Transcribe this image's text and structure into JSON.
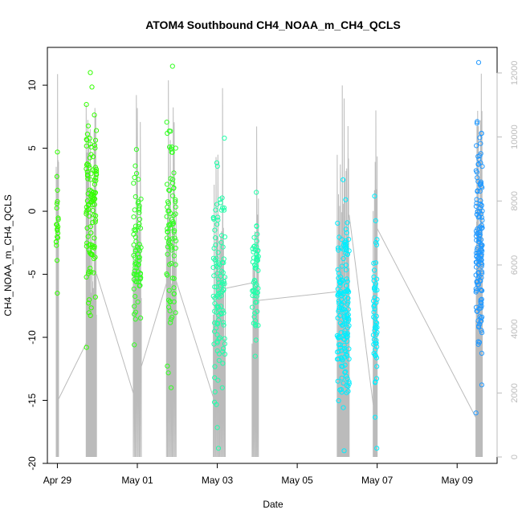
{
  "chart_data": {
    "type": "scatter",
    "title": "ATOM4 Southbound CH4_NOAA_m_CH4_QCLS",
    "xlabel": "Date",
    "ylabel": "CH4_NOAA_m_CH4_QCLS",
    "xlim": [
      -0.25,
      11.0
    ],
    "ylim": [
      -20,
      13
    ],
    "x_ticks": [
      {
        "value": 0,
        "label": "Apr 29"
      },
      {
        "value": 2,
        "label": "May 01"
      },
      {
        "value": 4,
        "label": "May 03"
      },
      {
        "value": 6,
        "label": "May 05"
      },
      {
        "value": 8,
        "label": "May 07"
      },
      {
        "value": 10,
        "label": "May 09"
      }
    ],
    "y_ticks": [
      -20,
      -15,
      -10,
      -5,
      0,
      5,
      10
    ],
    "y2_label": "",
    "y2lim": [
      -200,
      12800
    ],
    "y2_ticks": [
      0,
      2000,
      4000,
      6000,
      8000,
      10000,
      12000
    ],
    "colors": {
      "flight1": "#33ff00",
      "flight2": "#33ff22",
      "flight3": "#22ffaa",
      "flight4": "#00ffcc",
      "flight5": "#00eeff",
      "flight6": "#00ccff",
      "flight7": "#2299ff",
      "altitude": "#bbbbbb"
    },
    "flights": [
      {
        "name": "flight1",
        "center": 0.0,
        "spread": 0.03,
        "ymin": -6.5,
        "ymax": 4.7,
        "count": 22,
        "color_key": "flight1"
      },
      {
        "name": "flight1b",
        "center": 0.85,
        "spread": 0.13,
        "ymin": -10.8,
        "ymax": 11.0,
        "count": 110,
        "color_key": "flight1"
      },
      {
        "name": "flight2",
        "center": 2.0,
        "spread": 0.1,
        "ymin": -10.6,
        "ymax": 4.9,
        "count": 75,
        "color_key": "flight2"
      },
      {
        "name": "flight2b",
        "center": 2.85,
        "spread": 0.12,
        "ymin": -14.0,
        "ymax": 11.5,
        "count": 85,
        "color_key": "flight2"
      },
      {
        "name": "flight3",
        "center": 4.05,
        "spread": 0.15,
        "ymin": -18.8,
        "ymax": 5.8,
        "count": 110,
        "color_key": "flight3"
      },
      {
        "name": "flight3b",
        "center": 4.95,
        "spread": 0.08,
        "ymin": -11.5,
        "ymax": 1.5,
        "count": 60,
        "color_key": "flight3"
      },
      {
        "name": "flight4",
        "center": 7.15,
        "spread": 0.15,
        "ymin": -19.0,
        "ymax": 2.5,
        "count": 160,
        "color_key": "flight5"
      },
      {
        "name": "flight4b",
        "center": 7.95,
        "spread": 0.05,
        "ymin": -18.8,
        "ymax": 1.2,
        "count": 55,
        "color_key": "flight5"
      },
      {
        "name": "flight5",
        "center": 10.55,
        "spread": 0.08,
        "ymin": -16.0,
        "ymax": 11.8,
        "count": 150,
        "color_key": "flight7"
      }
    ]
  }
}
